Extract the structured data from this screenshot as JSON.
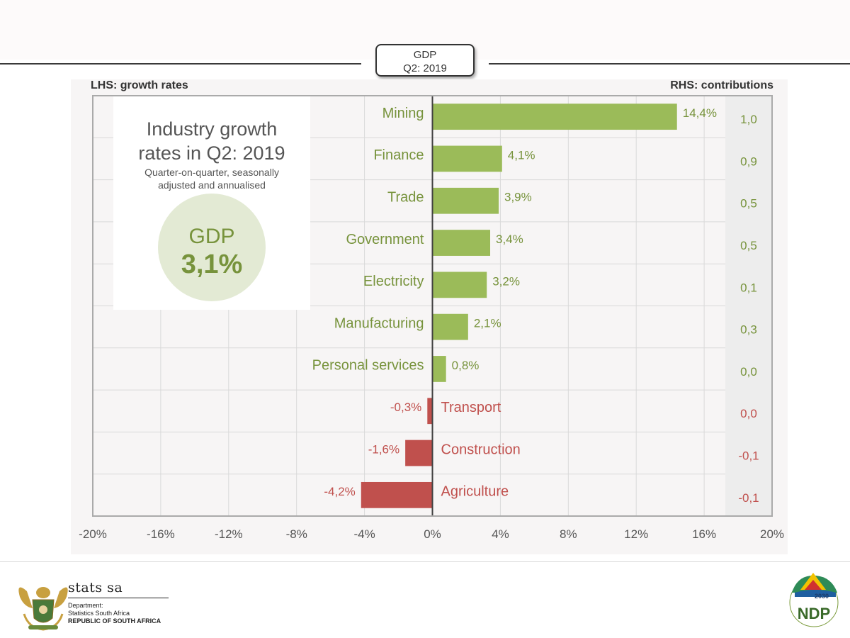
{
  "header": {
    "box_line1": "GDP",
    "box_line2": "Q2: 2019"
  },
  "labels": {
    "lhs": "LHS: growth rates",
    "rhs": "RHS: contributions"
  },
  "info": {
    "title_line1": "Industry growth",
    "title_line2": "rates in Q2: 2019",
    "subtitle_line1": "Quarter-on-quarter, seasonally",
    "subtitle_line2": "adjusted and annualised",
    "gdp_label": "GDP",
    "gdp_value": "3,1%"
  },
  "chart_data": {
    "type": "bar",
    "orientation": "horizontal",
    "title": "Industry growth rates in Q2: 2019",
    "categories": [
      "Mining",
      "Finance",
      "Trade",
      "Government",
      "Electricity",
      "Manufacturing",
      "Personal services",
      "Transport",
      "Construction",
      "Agriculture"
    ],
    "values": [
      14.4,
      4.1,
      3.9,
      3.4,
      3.2,
      2.1,
      0.8,
      -0.3,
      -1.6,
      -4.2
    ],
    "value_labels": [
      "14,4%",
      "4,1%",
      "3,9%",
      "3,4%",
      "3,2%",
      "2,1%",
      "0,8%",
      "-0,3%",
      "-1,6%",
      "-4,2%"
    ],
    "contributions": [
      "1,0",
      "0,9",
      "0,5",
      "0,5",
      "0,1",
      "0,3",
      "0,0",
      "0,0",
      "-0,1",
      "-0,1"
    ],
    "xlim": [
      -20,
      20
    ],
    "xticks": [
      -20,
      -16,
      -12,
      -8,
      -4,
      0,
      4,
      8,
      12,
      16,
      20
    ],
    "xtick_labels": [
      "-20%",
      "-16%",
      "-12%",
      "-8%",
      "-4%",
      "0%",
      "4%",
      "8%",
      "12%",
      "16%",
      "20%"
    ],
    "positive_color": "#9bbb59",
    "negative_color": "#c0504d",
    "positive_text_color": "#77933c",
    "negative_text_color": "#c0504d",
    "grid": true
  },
  "footer": {
    "org_name": "stats sa",
    "dept": "Department:",
    "dept_name": "Statistics South Africa",
    "country": "REPUBLIC OF SOUTH AFRICA",
    "ndp_year": "2030",
    "ndp_text": "NDP"
  }
}
